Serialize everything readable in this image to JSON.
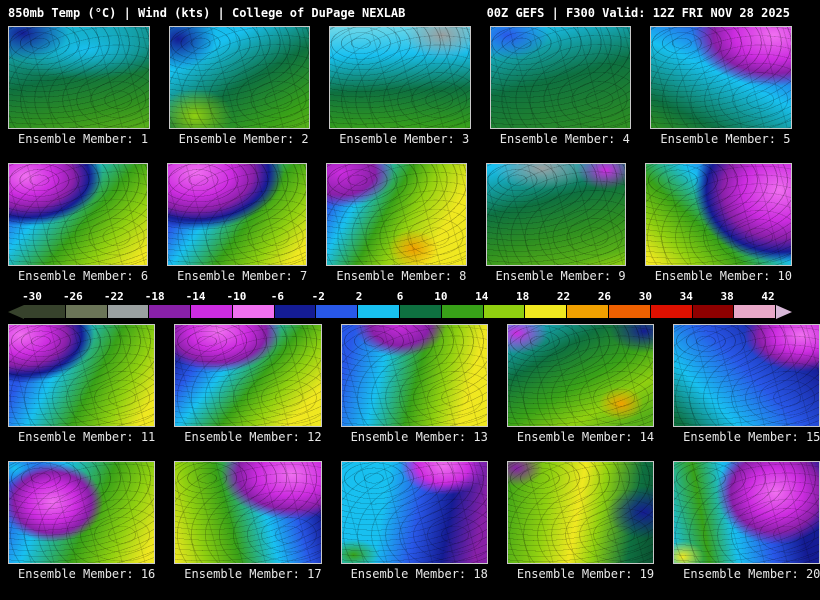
{
  "header": {
    "left": "850mb Temp (°C) | Wind (kts) | College of DuPage NEXLAB",
    "right": "00Z GEFS | F300 Valid: 12Z FRI NOV 28 2025"
  },
  "colorbar": {
    "description": "850mb temperature color scale (°C)",
    "ticks": [
      "-30",
      "-26",
      "-22",
      "-18",
      "-14",
      "-10",
      "-6",
      "-2",
      "2",
      "6",
      "10",
      "14",
      "18",
      "22",
      "26",
      "30",
      "34",
      "38",
      "42"
    ],
    "segment_colors": [
      "#37422c",
      "#6b7558",
      "#9aa0a0",
      "#8820a8",
      "#cc2ce0",
      "#f070f0",
      "#141c94",
      "#2858e8",
      "#18c0f0",
      "#0e7040",
      "#38a118",
      "#90d010",
      "#f0e820",
      "#f0a000",
      "#ee6000",
      "#dd1000",
      "#8e0000",
      "#e8a8c8"
    ],
    "arrow_left_color": "#37422c",
    "arrow_right_color": "#d8b8d8"
  },
  "members": [
    "Ensemble Member: 1",
    "Ensemble Member: 2",
    "Ensemble Member: 3",
    "Ensemble Member: 4",
    "Ensemble Member: 5",
    "Ensemble Member: 6",
    "Ensemble Member: 7",
    "Ensemble Member: 8",
    "Ensemble Member: 9",
    "Ensemble Member: 10",
    "Ensemble Member: 11",
    "Ensemble Member: 12",
    "Ensemble Member: 13",
    "Ensemble Member: 14",
    "Ensemble Member: 15",
    "Ensemble Member: 16",
    "Ensemble Member: 17",
    "Ensemble Member: 18",
    "Ensemble Member: 19",
    "Ensemble Member: 20"
  ]
}
